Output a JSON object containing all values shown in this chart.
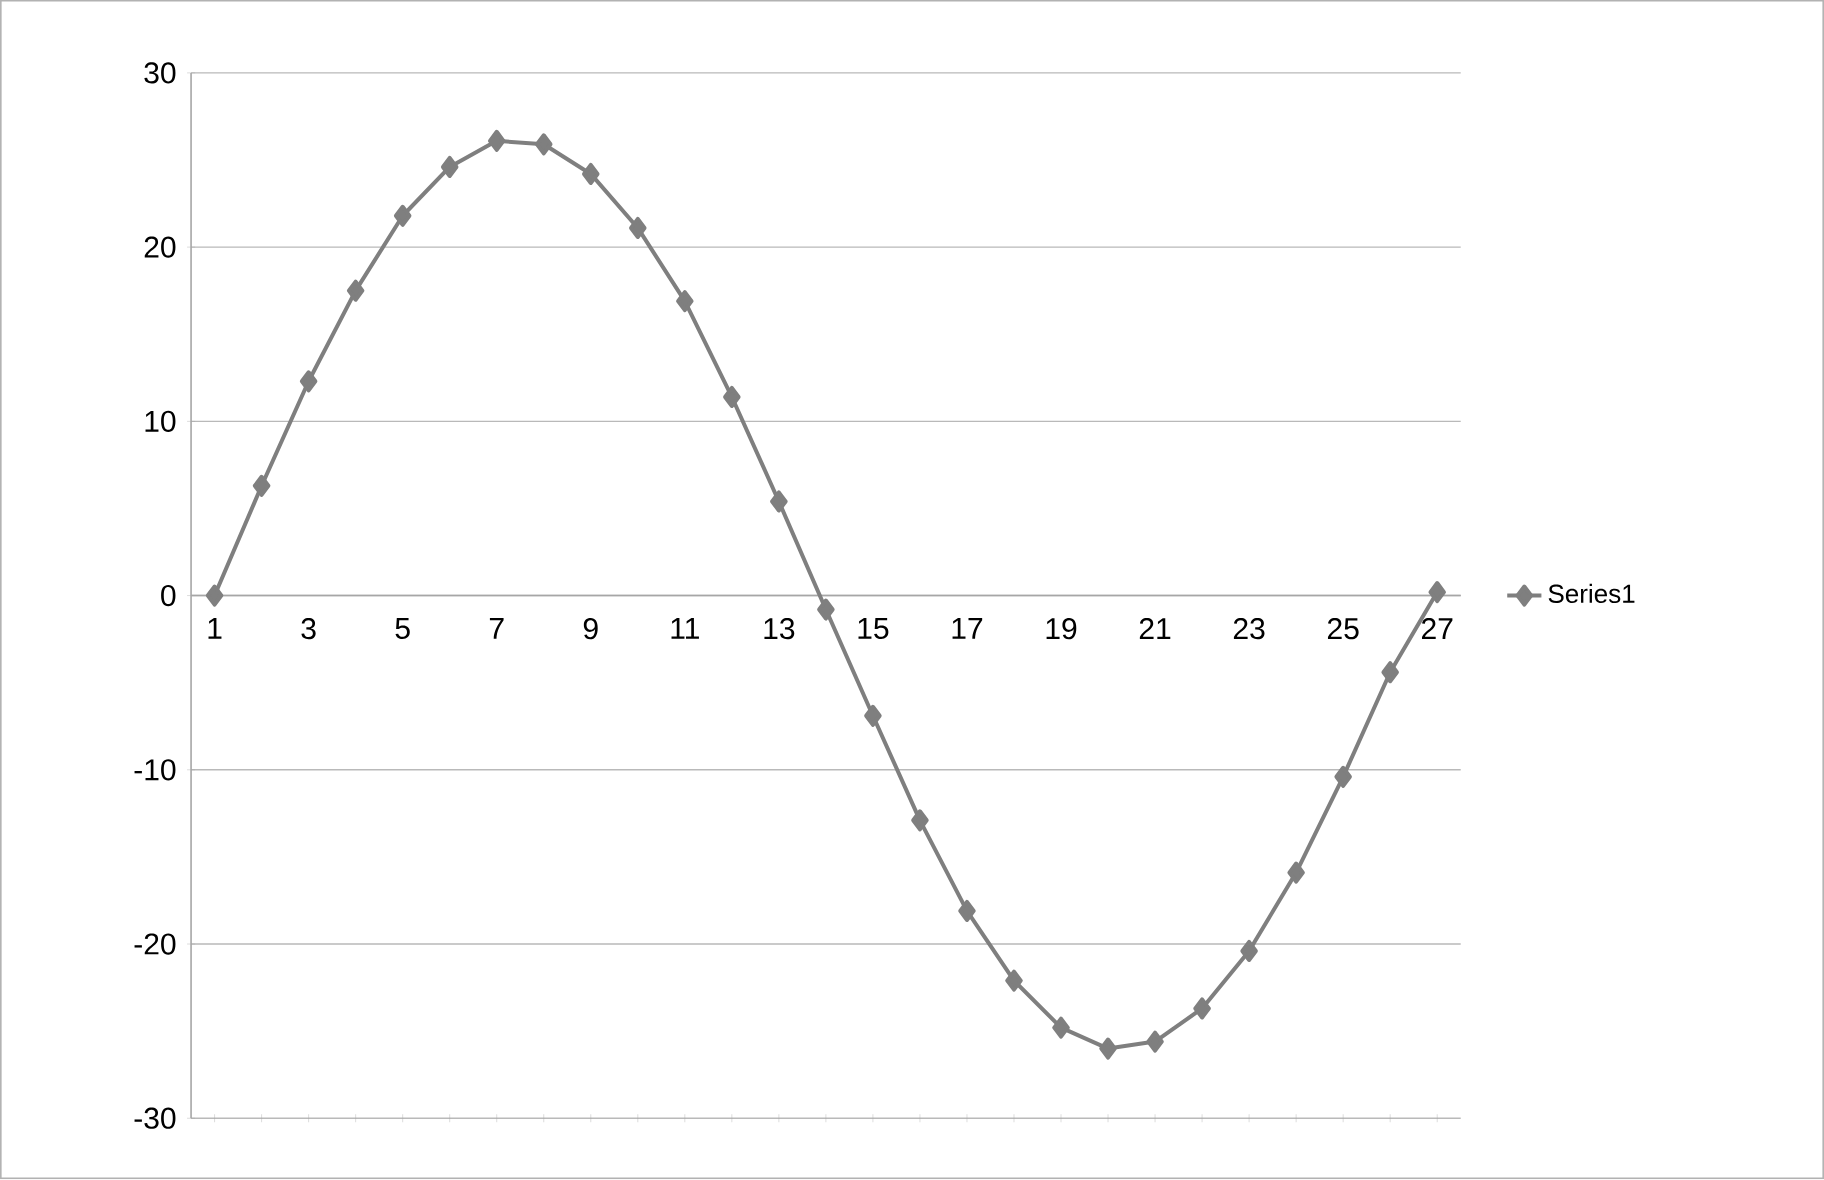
{
  "chart_data": {
    "type": "line",
    "categories": [
      "1",
      null,
      "3",
      null,
      "5",
      null,
      "7",
      null,
      "9",
      null,
      "11",
      null,
      "13",
      null,
      "15",
      null,
      "17",
      null,
      "19",
      null,
      "21",
      null,
      "23",
      null,
      "25",
      null,
      "27"
    ],
    "series": [
      {
        "name": "Series1",
        "color": "#7f7f7f",
        "values": [
          0,
          6.3,
          12.3,
          17.5,
          21.8,
          24.6,
          26.1,
          25.9,
          24.2,
          21.1,
          16.9,
          11.4,
          5.4,
          -0.8,
          -6.9,
          -12.9,
          -18.1,
          -22.1,
          -24.8,
          -26.0,
          -25.6,
          -23.7,
          -20.4,
          -15.9,
          -10.4,
          -4.4,
          0.2
        ]
      }
    ],
    "ylim": [
      -30,
      30
    ],
    "yticks": [
      -30,
      -20,
      -10,
      0,
      10,
      20,
      30
    ],
    "grid": "y",
    "legend": "right",
    "marker": "diamond",
    "line_style": "solid"
  }
}
